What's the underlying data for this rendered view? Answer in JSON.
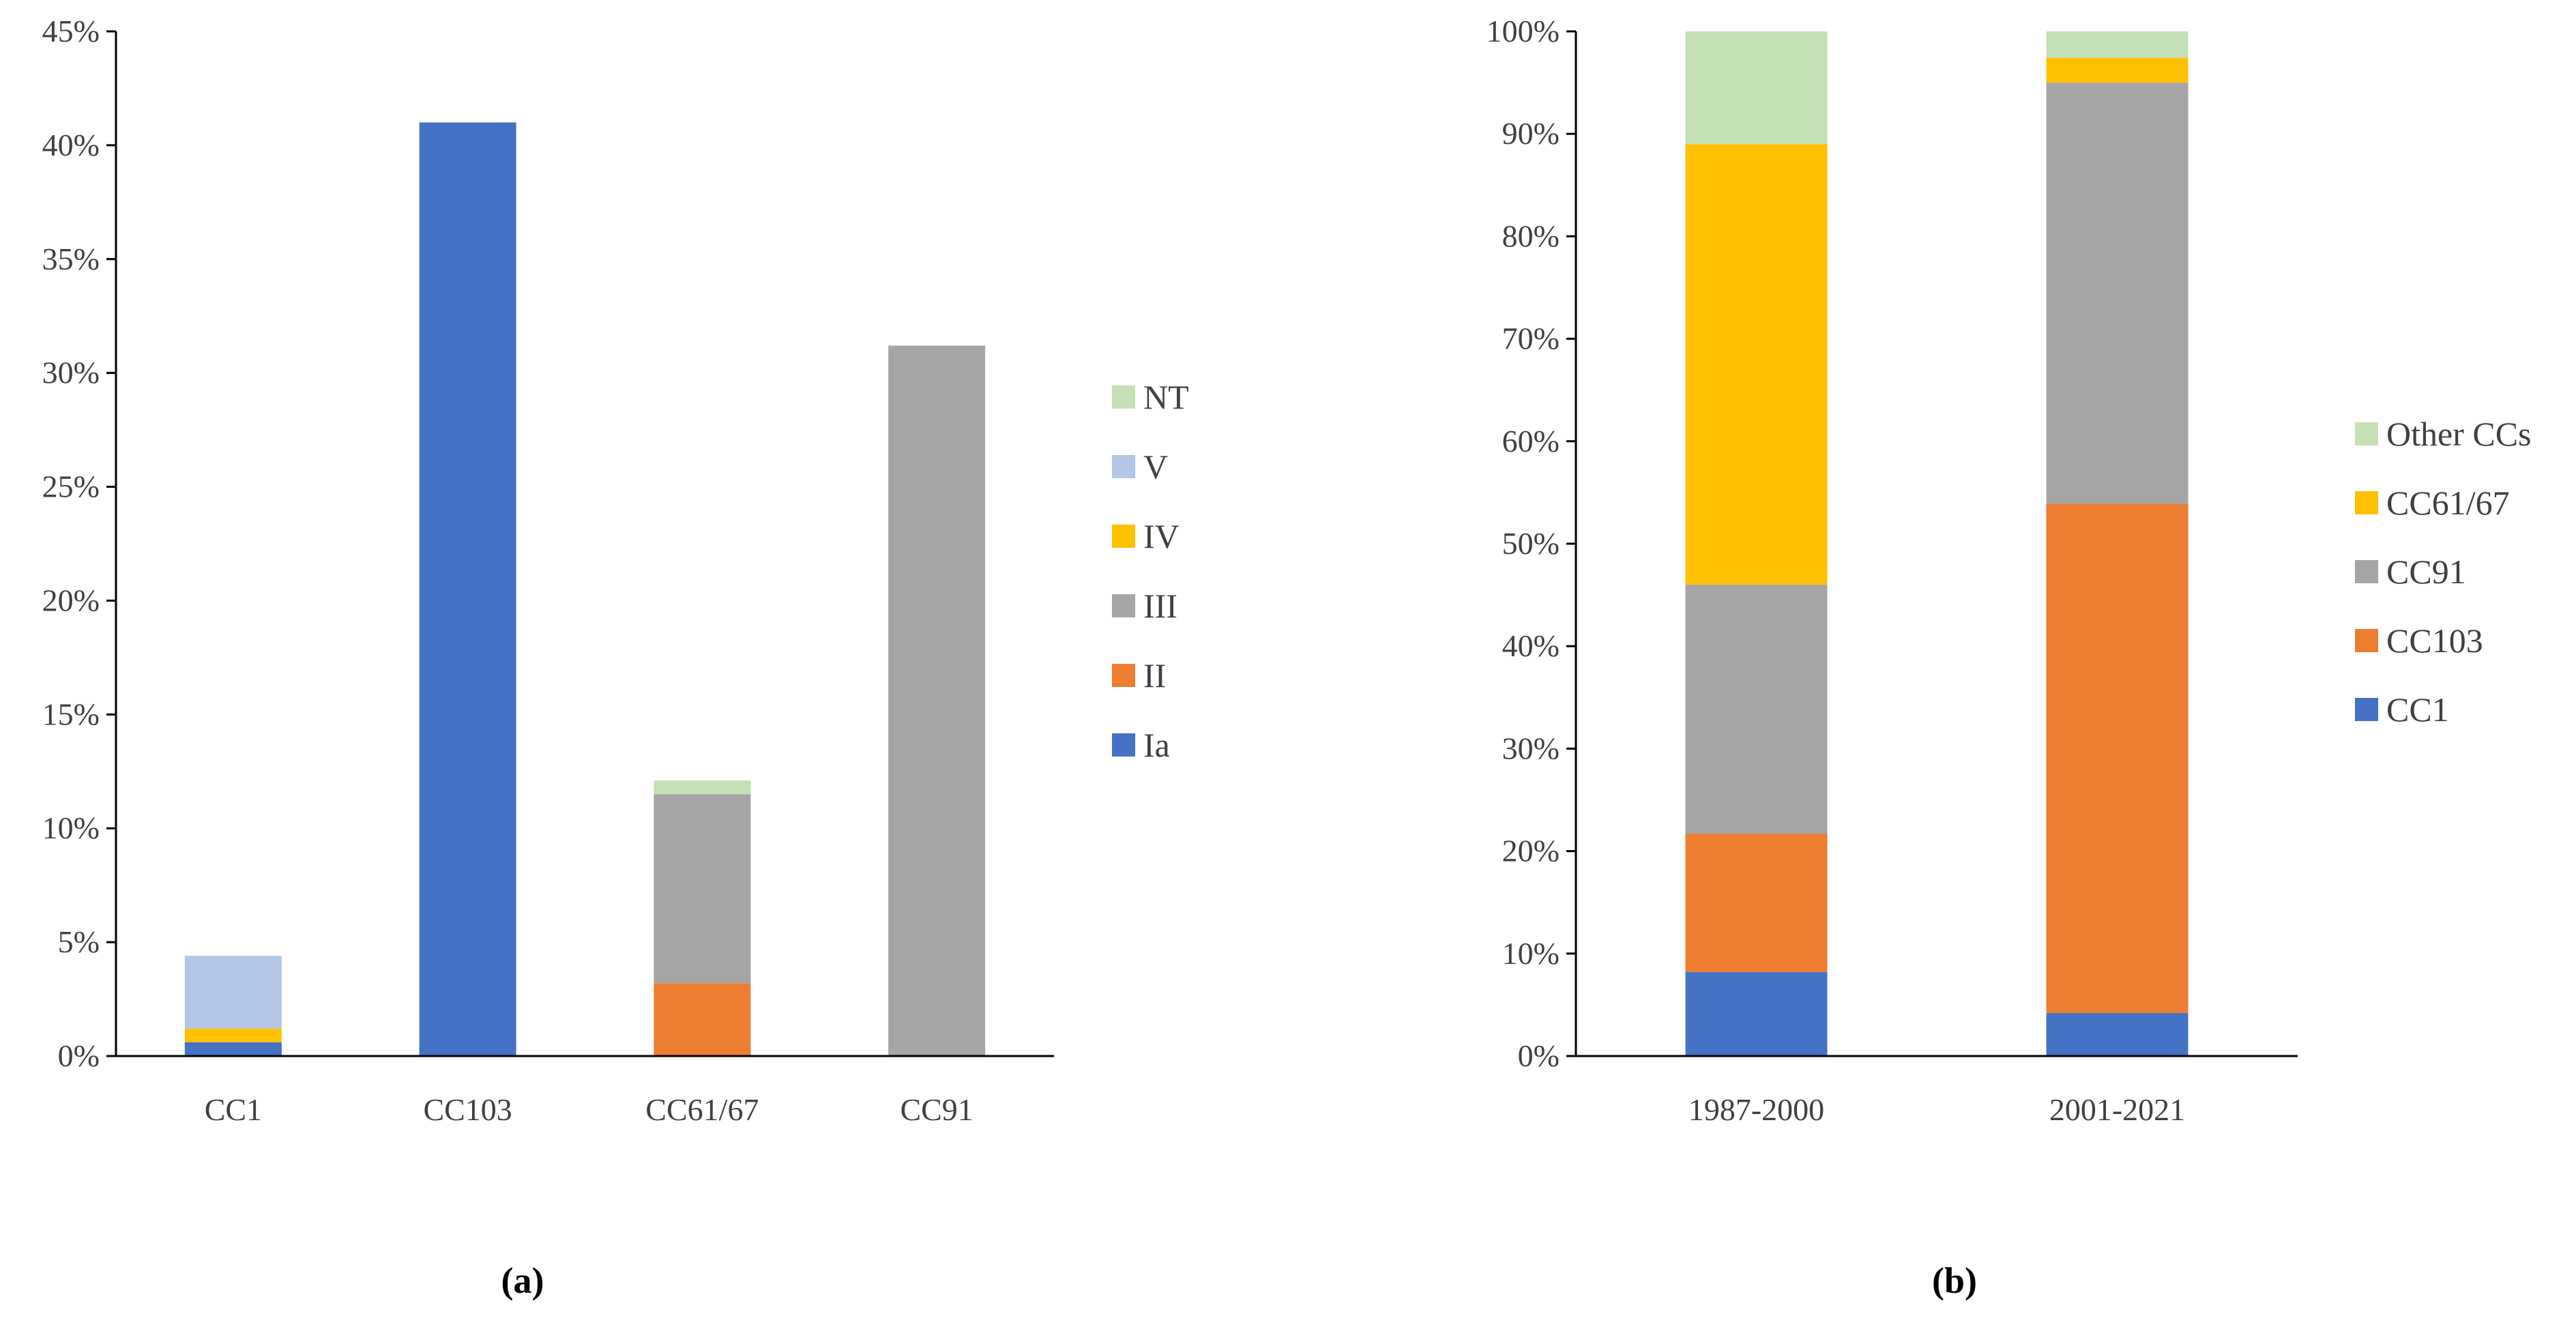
{
  "chart_data": [
    {
      "type": "bar",
      "stacked": true,
      "panel_label": "(a)",
      "title": "",
      "xlabel": "",
      "ylabel": "",
      "ylim": [
        0,
        0.45
      ],
      "y_ticks": [
        0,
        0.05,
        0.1,
        0.15,
        0.2,
        0.25,
        0.3,
        0.35,
        0.4,
        0.45
      ],
      "y_tick_labels": [
        "0%",
        "5%",
        "10%",
        "15%",
        "20%",
        "25%",
        "30%",
        "35%",
        "40%",
        "45%"
      ],
      "categories": [
        "CC1",
        "CC103",
        "CC61/67",
        "CC91"
      ],
      "series": [
        {
          "name": "Ia",
          "color": "#4472C4",
          "values": [
            0.006,
            0.41,
            0.0,
            0.0
          ]
        },
        {
          "name": "II",
          "color": "#ED7D31",
          "values": [
            0.0,
            0.0,
            0.032,
            0.0
          ]
        },
        {
          "name": "III",
          "color": "#A5A5A5",
          "values": [
            0.0,
            0.0,
            0.083,
            0.312
          ]
        },
        {
          "name": "IV",
          "color": "#FFC000",
          "values": [
            0.006,
            0.0,
            0.0,
            0.0
          ]
        },
        {
          "name": "V",
          "color": "#B4C7E7",
          "values": [
            0.032,
            0.0,
            0.0,
            0.0
          ]
        },
        {
          "name": "NT",
          "color": "#C5E0B4",
          "values": [
            0.0,
            0.0,
            0.006,
            0.0
          ]
        }
      ],
      "legend_order": [
        "NT",
        "V",
        "IV",
        "III",
        "II",
        "Ia"
      ],
      "legend_position": "right"
    },
    {
      "type": "bar",
      "stacked": true,
      "panel_label": "(b)",
      "title": "",
      "xlabel": "",
      "ylabel": "",
      "ylim": [
        0,
        1.0
      ],
      "y_ticks": [
        0,
        0.1,
        0.2,
        0.3,
        0.4,
        0.5,
        0.6,
        0.7,
        0.8,
        0.9,
        1.0
      ],
      "y_tick_labels": [
        "0%",
        "10%",
        "20%",
        "30%",
        "40%",
        "50%",
        "60%",
        "70%",
        "80%",
        "90%",
        "100%"
      ],
      "categories": [
        "1987-2000",
        "2001-2021"
      ],
      "series": [
        {
          "name": "CC1",
          "color": "#4472C4",
          "values": [
            0.082,
            0.042
          ]
        },
        {
          "name": "CC103",
          "color": "#ED7D31",
          "values": [
            0.135,
            0.497
          ]
        },
        {
          "name": "CC91",
          "color": "#A5A5A5",
          "values": [
            0.243,
            0.411
          ]
        },
        {
          "name": "CC61/67",
          "color": "#FFC000",
          "values": [
            0.43,
            0.024
          ]
        },
        {
          "name": "Other CCs",
          "color": "#C5E0B4",
          "values": [
            0.11,
            0.026
          ]
        }
      ],
      "legend_order": [
        "Other CCs",
        "CC61/67",
        "CC91",
        "CC103",
        "CC1"
      ],
      "legend_position": "right"
    }
  ]
}
